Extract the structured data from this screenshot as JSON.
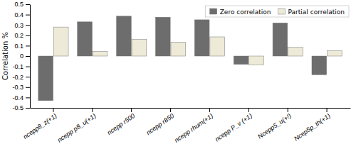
{
  "chart_data": {
    "type": "bar",
    "y_label": "Correlation %",
    "categories": [
      "ncepp8_z(+1)",
      "ncepp p8_u(+1)",
      "ncepp r500",
      "ncepp r850",
      "ncepp rhum(+1)",
      "ncepp P_v (+1)",
      "Ncepp5_u(+!)",
      "Ncep5p_th(+1)"
    ],
    "series": [
      {
        "name": "Zero correlation",
        "color": "#6d6d6d",
        "values": [
          -0.43,
          0.33,
          0.385,
          0.375,
          0.35,
          -0.08,
          0.32,
          -0.18
        ]
      },
      {
        "name": "Partial correlation",
        "color": "#eeead8",
        "values": [
          0.28,
          0.045,
          0.16,
          0.135,
          0.185,
          -0.085,
          0.085,
          0.05
        ]
      }
    ],
    "ylim": [
      -0.5,
      0.5
    ],
    "yticks": [
      -0.5,
      -0.4,
      -0.3,
      -0.2,
      -0.1,
      0,
      0.1,
      0.2,
      0.3,
      0.4,
      0.5
    ],
    "legend": "upper right"
  }
}
